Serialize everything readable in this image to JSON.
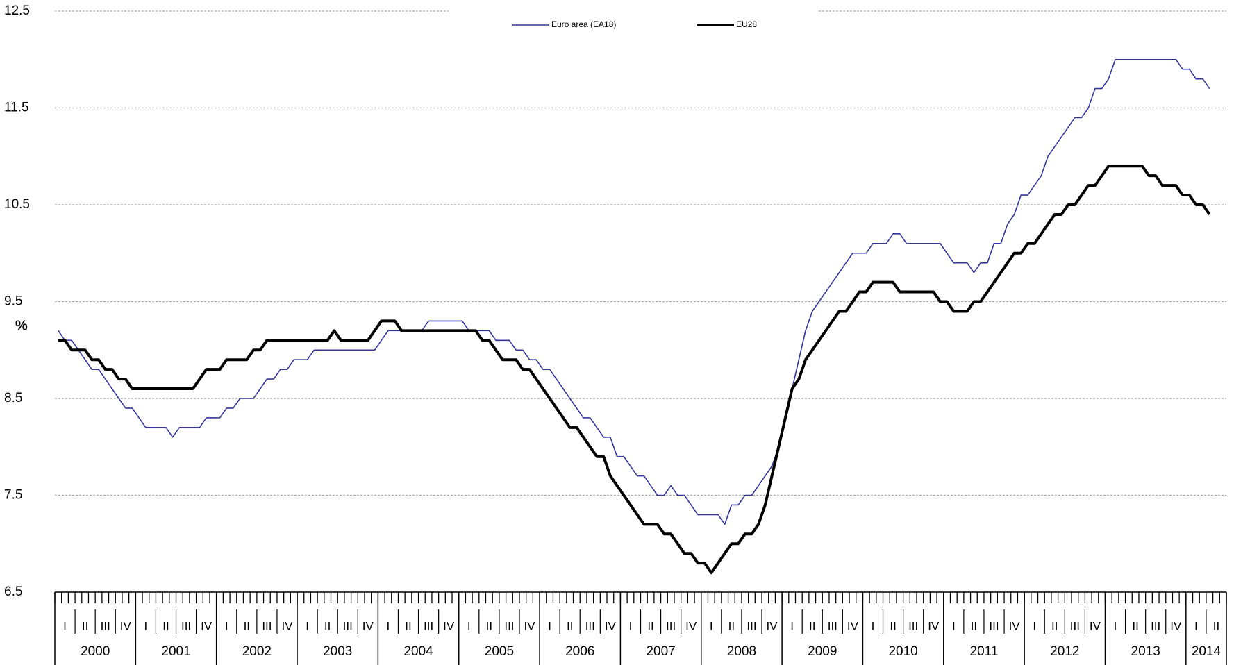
{
  "chart_data": {
    "type": "line",
    "y_label": "%",
    "ylim": [
      6.5,
      12.5
    ],
    "yticks": [
      6.5,
      7.5,
      8.5,
      9.5,
      10.5,
      11.5,
      12.5
    ],
    "grid": true,
    "legend": "top",
    "x_axis": {
      "years": [
        {
          "label": "2000",
          "quarters": [
            "I",
            "II",
            "III",
            "IV"
          ]
        },
        {
          "label": "2001",
          "quarters": [
            "I",
            "II",
            "III",
            "IV"
          ]
        },
        {
          "label": "2002",
          "quarters": [
            "I",
            "II",
            "III",
            "IV"
          ]
        },
        {
          "label": "2003",
          "quarters": [
            "I",
            "II",
            "III",
            "IV"
          ]
        },
        {
          "label": "2004",
          "quarters": [
            "I",
            "II",
            "III",
            "IV"
          ]
        },
        {
          "label": "2005",
          "quarters": [
            "I",
            "II",
            "III",
            "IV"
          ]
        },
        {
          "label": "2006",
          "quarters": [
            "I",
            "II",
            "III",
            "IV"
          ]
        },
        {
          "label": "2007",
          "quarters": [
            "I",
            "II",
            "III",
            "IV"
          ]
        },
        {
          "label": "2008",
          "quarters": [
            "I",
            "II",
            "III",
            "IV"
          ]
        },
        {
          "label": "2009",
          "quarters": [
            "I",
            "II",
            "III",
            "IV"
          ]
        },
        {
          "label": "2010",
          "quarters": [
            "I",
            "II",
            "III",
            "IV"
          ]
        },
        {
          "label": "2011",
          "quarters": [
            "I",
            "II",
            "III",
            "IV"
          ]
        },
        {
          "label": "2012",
          "quarters": [
            "I",
            "II",
            "III",
            "IV"
          ]
        },
        {
          "label": "2013",
          "quarters": [
            "I",
            "II",
            "III",
            "IV"
          ]
        },
        {
          "label": "2014",
          "quarters": [
            "I",
            "II"
          ]
        }
      ]
    },
    "series": [
      {
        "name": "Euro area (EA18)",
        "color": "#34349a",
        "line_width": 1.6,
        "values": [
          9.2,
          9.1,
          9.1,
          9.0,
          8.9,
          8.8,
          8.8,
          8.7,
          8.6,
          8.5,
          8.4,
          8.4,
          8.3,
          8.2,
          8.2,
          8.2,
          8.2,
          8.1,
          8.2,
          8.2,
          8.2,
          8.2,
          8.3,
          8.3,
          8.3,
          8.4,
          8.4,
          8.5,
          8.5,
          8.5,
          8.6,
          8.7,
          8.7,
          8.8,
          8.8,
          8.9,
          8.9,
          8.9,
          9.0,
          9.0,
          9.0,
          9.0,
          9.0,
          9.0,
          9.0,
          9.0,
          9.0,
          9.0,
          9.1,
          9.2,
          9.2,
          9.2,
          9.2,
          9.2,
          9.2,
          9.3,
          9.3,
          9.3,
          9.3,
          9.3,
          9.3,
          9.2,
          9.2,
          9.2,
          9.2,
          9.1,
          9.1,
          9.1,
          9.0,
          9.0,
          8.9,
          8.9,
          8.8,
          8.8,
          8.7,
          8.6,
          8.5,
          8.4,
          8.3,
          8.3,
          8.2,
          8.1,
          8.1,
          7.9,
          7.9,
          7.8,
          7.7,
          7.7,
          7.6,
          7.5,
          7.5,
          7.6,
          7.5,
          7.5,
          7.4,
          7.3,
          7.3,
          7.3,
          7.3,
          7.2,
          7.4,
          7.4,
          7.5,
          7.5,
          7.6,
          7.7,
          7.8,
          8.0,
          8.3,
          8.6,
          8.9,
          9.2,
          9.4,
          9.5,
          9.6,
          9.7,
          9.8,
          9.9,
          10.0,
          10.0,
          10.0,
          10.1,
          10.1,
          10.1,
          10.2,
          10.2,
          10.1,
          10.1,
          10.1,
          10.1,
          10.1,
          10.1,
          10.0,
          9.9,
          9.9,
          9.9,
          9.8,
          9.9,
          9.9,
          10.1,
          10.1,
          10.3,
          10.4,
          10.6,
          10.6,
          10.7,
          10.8,
          11.0,
          11.1,
          11.2,
          11.3,
          11.4,
          11.4,
          11.5,
          11.7,
          11.7,
          11.8,
          12.0,
          12.0,
          12.0,
          12.0,
          12.0,
          12.0,
          12.0,
          12.0,
          12.0,
          12.0,
          11.9,
          11.9,
          11.8,
          11.8,
          11.7,
          null,
          null
        ]
      },
      {
        "name": "EU28",
        "color": "#000000",
        "line_width": 4,
        "values": [
          9.1,
          9.1,
          9.0,
          9.0,
          9.0,
          8.9,
          8.9,
          8.8,
          8.8,
          8.7,
          8.7,
          8.6,
          8.6,
          8.6,
          8.6,
          8.6,
          8.6,
          8.6,
          8.6,
          8.6,
          8.6,
          8.7,
          8.8,
          8.8,
          8.8,
          8.9,
          8.9,
          8.9,
          8.9,
          9.0,
          9.0,
          9.1,
          9.1,
          9.1,
          9.1,
          9.1,
          9.1,
          9.1,
          9.1,
          9.1,
          9.1,
          9.2,
          9.1,
          9.1,
          9.1,
          9.1,
          9.1,
          9.2,
          9.3,
          9.3,
          9.3,
          9.2,
          9.2,
          9.2,
          9.2,
          9.2,
          9.2,
          9.2,
          9.2,
          9.2,
          9.2,
          9.2,
          9.2,
          9.1,
          9.1,
          9.0,
          8.9,
          8.9,
          8.9,
          8.8,
          8.8,
          8.7,
          8.6,
          8.5,
          8.4,
          8.3,
          8.2,
          8.2,
          8.1,
          8.0,
          7.9,
          7.9,
          7.7,
          7.6,
          7.5,
          7.4,
          7.3,
          7.2,
          7.2,
          7.2,
          7.1,
          7.1,
          7.0,
          6.9,
          6.9,
          6.8,
          6.8,
          6.7,
          6.8,
          6.9,
          7.0,
          7.0,
          7.1,
          7.1,
          7.2,
          7.4,
          7.7,
          8.0,
          8.3,
          8.6,
          8.7,
          8.9,
          9.0,
          9.1,
          9.2,
          9.3,
          9.4,
          9.4,
          9.5,
          9.6,
          9.6,
          9.7,
          9.7,
          9.7,
          9.7,
          9.6,
          9.6,
          9.6,
          9.6,
          9.6,
          9.6,
          9.5,
          9.5,
          9.4,
          9.4,
          9.4,
          9.5,
          9.5,
          9.6,
          9.7,
          9.8,
          9.9,
          10.0,
          10.0,
          10.1,
          10.1,
          10.2,
          10.3,
          10.4,
          10.4,
          10.5,
          10.5,
          10.6,
          10.7,
          10.7,
          10.8,
          10.9,
          10.9,
          10.9,
          10.9,
          10.9,
          10.9,
          10.8,
          10.8,
          10.7,
          10.7,
          10.7,
          10.6,
          10.6,
          10.5,
          10.5,
          10.4,
          null,
          null
        ]
      }
    ]
  }
}
